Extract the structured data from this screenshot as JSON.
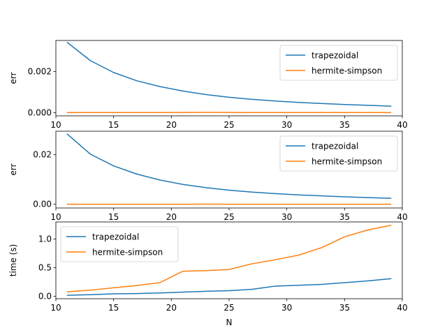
{
  "chart_data": [
    {
      "type": "line",
      "title": "",
      "xlabel": "",
      "ylabel": "err",
      "xlim": [
        10,
        40
      ],
      "ylim": [
        -0.00015,
        0.0035
      ],
      "xticks": [
        10,
        15,
        20,
        25,
        30,
        35,
        40
      ],
      "xtick_labels": [
        "10",
        "15",
        "20",
        "25",
        "30",
        "35",
        "40"
      ],
      "yticks": [
        0.0,
        0.002
      ],
      "ytick_labels": [
        "0.000",
        "0.002"
      ],
      "legend": "upper-right",
      "x": [
        11,
        13,
        15,
        17,
        19,
        21,
        23,
        25,
        27,
        29,
        31,
        33,
        35,
        37,
        39
      ],
      "series": [
        {
          "name": "trapezoidal",
          "color": "#1f77b4",
          "values": [
            0.0034,
            0.00252,
            0.00195,
            0.00155,
            0.00127,
            0.00105,
            0.00088,
            0.00075,
            0.00065,
            0.00057,
            0.0005,
            0.00045,
            0.0004,
            0.00036,
            0.00032
          ]
        },
        {
          "name": "hermite-simpson",
          "color": "#ff7f0e",
          "values": [
            1e-05,
            1e-05,
            1.2e-05,
            1.2e-05,
            1.2e-05,
            1.5e-05,
            2e-05,
            1.5e-05,
            1.2e-05,
            1.2e-05,
            1e-05,
            1e-05,
            1e-05,
            1e-05,
            1e-05
          ]
        }
      ]
    },
    {
      "type": "line",
      "title": "",
      "xlabel": "",
      "ylabel": "err",
      "xlim": [
        10,
        40
      ],
      "ylim": [
        -0.0015,
        0.0295
      ],
      "xticks": [
        10,
        15,
        20,
        25,
        30,
        35,
        40
      ],
      "xtick_labels": [
        "10",
        "15",
        "20",
        "25",
        "30",
        "35",
        "40"
      ],
      "yticks": [
        0.0,
        0.02
      ],
      "ytick_labels": [
        "0.00",
        "0.02"
      ],
      "legend": "upper-right",
      "x": [
        11,
        13,
        15,
        17,
        19,
        21,
        23,
        25,
        27,
        29,
        31,
        33,
        35,
        37,
        39
      ],
      "series": [
        {
          "name": "trapezoidal",
          "color": "#1f77b4",
          "values": [
            0.0283,
            0.0202,
            0.0155,
            0.0122,
            0.0098,
            0.008,
            0.0067,
            0.0057,
            0.0049,
            0.0043,
            0.0038,
            0.0034,
            0.003,
            0.0027,
            0.0024
          ]
        },
        {
          "name": "hermite-simpson",
          "color": "#ff7f0e",
          "values": [
            0.0,
            0.0,
            0.0,
            0.0,
            2e-05,
            3e-05,
            5e-05,
            3e-05,
            2e-05,
            2e-05,
            1e-05,
            1e-05,
            1e-05,
            1e-05,
            1e-05
          ]
        }
      ]
    },
    {
      "type": "line",
      "title": "",
      "xlabel": "N",
      "ylabel": "time (s)",
      "xlim": [
        10,
        40
      ],
      "ylim": [
        -0.04,
        1.3
      ],
      "xticks": [
        10,
        15,
        20,
        25,
        30,
        35,
        40
      ],
      "xtick_labels": [
        "10",
        "15",
        "20",
        "25",
        "30",
        "35",
        "40"
      ],
      "yticks": [
        0.0,
        0.5,
        1.0
      ],
      "ytick_labels": [
        "0.0",
        "0.5",
        "1.0"
      ],
      "legend": "upper-left",
      "x": [
        11,
        13,
        15,
        17,
        19,
        21,
        23,
        25,
        27,
        29,
        31,
        33,
        35,
        37,
        39
      ],
      "series": [
        {
          "name": "trapezoidal",
          "color": "#1f77b4",
          "values": [
            0.02,
            0.03,
            0.045,
            0.05,
            0.06,
            0.075,
            0.09,
            0.1,
            0.125,
            0.18,
            0.195,
            0.21,
            0.24,
            0.27,
            0.31
          ]
        },
        {
          "name": "hermite-simpson",
          "color": "#ff7f0e",
          "values": [
            0.08,
            0.11,
            0.15,
            0.19,
            0.24,
            0.44,
            0.45,
            0.47,
            0.57,
            0.64,
            0.72,
            0.85,
            1.04,
            1.16,
            1.24
          ]
        }
      ]
    }
  ]
}
